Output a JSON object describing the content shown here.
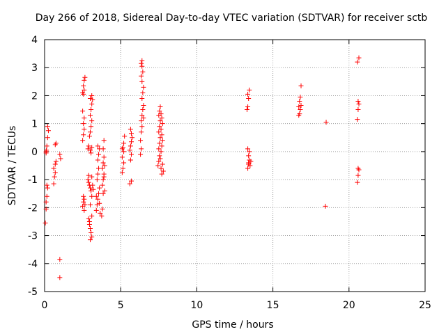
{
  "chart_data": {
    "type": "scatter",
    "title": "Day 266 of 2018, Sidereal Day-to-day VTEC variation (SDTVAR) for receiver sctb",
    "xlabel": "GPS time / hours",
    "ylabel": "SDTVAR / TECUs",
    "xlim": [
      0,
      25
    ],
    "ylim": [
      -5,
      4
    ],
    "xticks": [
      0,
      5,
      10,
      15,
      20,
      25
    ],
    "yticks": [
      -5,
      -4,
      -3,
      -2,
      -1,
      0,
      1,
      2,
      3,
      4
    ],
    "grid": true,
    "marker": "+",
    "color": "#ff0000",
    "series": [
      {
        "name": "sctb",
        "points": [
          [
            0.05,
            -2.55
          ],
          [
            0.1,
            -2.05
          ],
          [
            0.1,
            -1.8
          ],
          [
            0.15,
            -1.6
          ],
          [
            0.2,
            -1.3
          ],
          [
            0.15,
            -1.2
          ],
          [
            0.1,
            -0.05
          ],
          [
            0.12,
            0.05
          ],
          [
            0.15,
            0.2
          ],
          [
            0.2,
            0.5
          ],
          [
            0.25,
            0.75
          ],
          [
            0.2,
            0.9
          ],
          [
            0.1,
            0.0
          ],
          [
            0.6,
            -1.15
          ],
          [
            0.65,
            -0.9
          ],
          [
            0.7,
            -0.75
          ],
          [
            0.6,
            -0.6
          ],
          [
            0.7,
            -0.45
          ],
          [
            0.75,
            -0.35
          ],
          [
            0.7,
            0.25
          ],
          [
            0.75,
            0.3
          ],
          [
            1.0,
            -3.85
          ],
          [
            1.0,
            -4.5
          ],
          [
            1.05,
            -0.25
          ],
          [
            1.0,
            -0.1
          ],
          [
            2.5,
            -1.95
          ],
          [
            2.55,
            -1.8
          ],
          [
            2.6,
            -1.7
          ],
          [
            2.55,
            -1.6
          ],
          [
            2.65,
            -1.9
          ],
          [
            2.6,
            -2.1
          ],
          [
            2.5,
            0.4
          ],
          [
            2.55,
            0.6
          ],
          [
            2.6,
            0.8
          ],
          [
            2.55,
            1.0
          ],
          [
            2.6,
            1.2
          ],
          [
            2.5,
            1.45
          ],
          [
            2.55,
            2.05
          ],
          [
            2.6,
            2.2
          ],
          [
            2.55,
            2.35
          ],
          [
            2.6,
            2.55
          ],
          [
            2.65,
            2.65
          ],
          [
            2.5,
            2.1
          ],
          [
            2.9,
            -2.4
          ],
          [
            2.95,
            -2.6
          ],
          [
            3.0,
            -2.75
          ],
          [
            3.05,
            -2.9
          ],
          [
            3.1,
            -3.05
          ],
          [
            3.0,
            -3.15
          ],
          [
            2.95,
            -2.5
          ],
          [
            3.1,
            -2.3
          ],
          [
            2.85,
            -1.0
          ],
          [
            2.9,
            -1.1
          ],
          [
            2.95,
            -1.2
          ],
          [
            3.0,
            -1.3
          ],
          [
            3.05,
            -1.4
          ],
          [
            3.1,
            -0.9
          ],
          [
            2.9,
            -0.85
          ],
          [
            3.15,
            -1.2
          ],
          [
            3.2,
            -1.35
          ],
          [
            3.1,
            -1.6
          ],
          [
            3.0,
            -1.9
          ],
          [
            2.85,
            0.1
          ],
          [
            2.9,
            0.2
          ],
          [
            3.0,
            0.05
          ],
          [
            3.05,
            -0.05
          ],
          [
            3.1,
            0.15
          ],
          [
            2.95,
            0.55
          ],
          [
            3.0,
            0.7
          ],
          [
            3.05,
            0.9
          ],
          [
            3.1,
            1.1
          ],
          [
            3.0,
            1.3
          ],
          [
            3.05,
            1.5
          ],
          [
            3.1,
            1.7
          ],
          [
            3.15,
            1.85
          ],
          [
            3.0,
            1.9
          ],
          [
            3.1,
            2.0
          ],
          [
            3.4,
            -2.1
          ],
          [
            3.45,
            -1.9
          ],
          [
            3.5,
            -1.7
          ],
          [
            3.55,
            -1.5
          ],
          [
            3.6,
            -1.3
          ],
          [
            3.45,
            -1.0
          ],
          [
            3.5,
            -0.8
          ],
          [
            3.55,
            -0.6
          ],
          [
            3.5,
            -0.3
          ],
          [
            3.55,
            -0.1
          ],
          [
            3.6,
            0.1
          ],
          [
            3.5,
            0.2
          ],
          [
            3.4,
            -1.6
          ],
          [
            3.6,
            -1.85
          ],
          [
            3.65,
            -2.2
          ],
          [
            3.75,
            -2.3
          ],
          [
            3.8,
            -2.05
          ],
          [
            3.85,
            -1.5
          ],
          [
            3.8,
            -1.2
          ],
          [
            3.85,
            -1.0
          ],
          [
            3.9,
            -0.8
          ],
          [
            3.8,
            -0.6
          ],
          [
            3.85,
            -0.4
          ],
          [
            3.9,
            -0.2
          ],
          [
            3.95,
            -0.5
          ],
          [
            3.9,
            -0.9
          ],
          [
            3.85,
            0.1
          ],
          [
            3.9,
            0.4
          ],
          [
            3.95,
            -1.4
          ],
          [
            5.1,
            -0.75
          ],
          [
            5.15,
            -0.6
          ],
          [
            5.2,
            -0.4
          ],
          [
            5.1,
            -0.2
          ],
          [
            5.2,
            0.0
          ],
          [
            5.15,
            0.15
          ],
          [
            5.2,
            0.3
          ],
          [
            5.25,
            0.55
          ],
          [
            5.1,
            0.1
          ],
          [
            5.6,
            -1.15
          ],
          [
            5.7,
            -1.05
          ],
          [
            5.65,
            -0.3
          ],
          [
            5.7,
            -0.1
          ],
          [
            5.6,
            0.05
          ],
          [
            5.65,
            0.2
          ],
          [
            5.7,
            0.35
          ],
          [
            5.75,
            0.5
          ],
          [
            5.7,
            0.65
          ],
          [
            5.65,
            0.8
          ],
          [
            6.3,
            -0.1
          ],
          [
            6.35,
            0.1
          ],
          [
            6.3,
            0.4
          ],
          [
            6.35,
            0.7
          ],
          [
            6.4,
            0.9
          ],
          [
            6.35,
            1.1
          ],
          [
            6.4,
            1.3
          ],
          [
            6.45,
            1.5
          ],
          [
            6.5,
            1.65
          ],
          [
            6.4,
            1.9
          ],
          [
            6.45,
            2.1
          ],
          [
            6.5,
            2.3
          ],
          [
            6.4,
            2.5
          ],
          [
            6.35,
            2.7
          ],
          [
            6.45,
            2.85
          ],
          [
            6.4,
            3.05
          ],
          [
            6.35,
            3.15
          ],
          [
            6.4,
            3.25
          ],
          [
            6.5,
            1.2
          ],
          [
            7.45,
            -0.5
          ],
          [
            7.5,
            -0.35
          ],
          [
            7.55,
            -0.15
          ],
          [
            7.5,
            0.1
          ],
          [
            7.55,
            0.3
          ],
          [
            7.6,
            0.5
          ],
          [
            7.5,
            0.7
          ],
          [
            7.55,
            0.9
          ],
          [
            7.6,
            1.1
          ],
          [
            7.5,
            1.3
          ],
          [
            7.55,
            1.45
          ],
          [
            7.6,
            1.6
          ],
          [
            7.65,
            -0.6
          ],
          [
            7.7,
            -0.8
          ],
          [
            7.6,
            -0.25
          ],
          [
            7.65,
            0.0
          ],
          [
            7.7,
            0.2
          ],
          [
            7.75,
            0.4
          ],
          [
            7.7,
            0.6
          ],
          [
            7.65,
            0.8
          ],
          [
            7.75,
            1.0
          ],
          [
            7.7,
            1.2
          ],
          [
            7.65,
            1.35
          ],
          [
            7.8,
            -0.7
          ],
          [
            7.75,
            -0.45
          ],
          [
            13.3,
            1.5
          ],
          [
            13.35,
            1.6
          ],
          [
            13.4,
            1.9
          ],
          [
            13.35,
            2.05
          ],
          [
            13.45,
            2.2
          ],
          [
            13.35,
            -0.6
          ],
          [
            13.4,
            -0.45
          ],
          [
            13.45,
            -0.3
          ],
          [
            13.4,
            -0.15
          ],
          [
            13.45,
            0.0
          ],
          [
            13.35,
            0.1
          ],
          [
            13.5,
            -0.5
          ],
          [
            13.4,
            -0.4
          ],
          [
            13.55,
            -0.35
          ],
          [
            16.7,
            1.3
          ],
          [
            16.75,
            1.35
          ],
          [
            16.8,
            1.5
          ],
          [
            16.7,
            1.6
          ],
          [
            16.85,
            1.65
          ],
          [
            16.75,
            1.8
          ],
          [
            16.8,
            1.95
          ],
          [
            16.85,
            2.35
          ],
          [
            18.5,
            1.05
          ],
          [
            18.45,
            -1.95
          ],
          [
            20.55,
            -1.1
          ],
          [
            20.6,
            -0.85
          ],
          [
            20.6,
            -0.6
          ],
          [
            20.65,
            -0.65
          ],
          [
            20.55,
            1.15
          ],
          [
            20.6,
            1.5
          ],
          [
            20.65,
            1.7
          ],
          [
            20.6,
            1.8
          ],
          [
            20.55,
            3.2
          ],
          [
            20.65,
            3.35
          ]
        ]
      }
    ]
  }
}
